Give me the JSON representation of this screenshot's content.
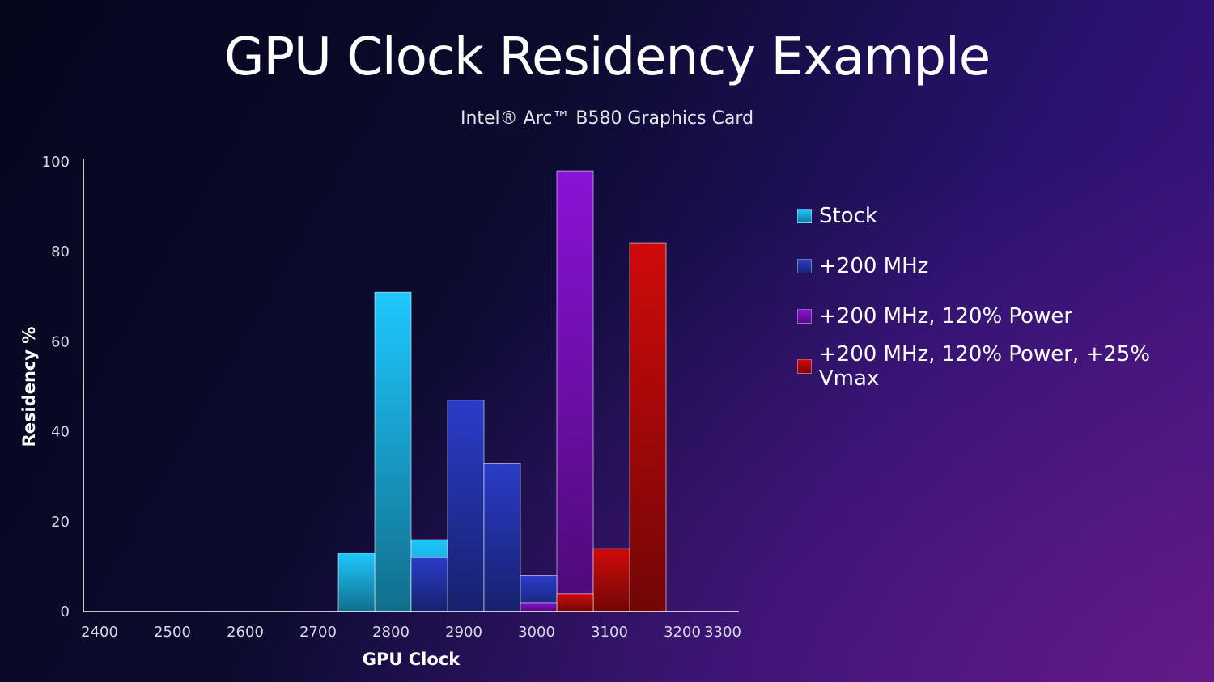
{
  "title": "GPU Clock Residency Example",
  "subtitle": "Intel® Arc™ B580 Graphics Card",
  "chart_data": {
    "type": "bar",
    "xlabel": "GPU Clock",
    "ylabel": "Residency %",
    "xlim": [
      2400,
      3300
    ],
    "ylim": [
      0,
      100
    ],
    "xticks": [
      2400,
      2500,
      2600,
      2700,
      2800,
      2900,
      3000,
      3100,
      3200,
      3300
    ],
    "yticks": [
      0,
      20,
      40,
      60,
      80,
      100
    ],
    "bin_width": 50,
    "legend_position": "right",
    "series": [
      {
        "name": "Stock",
        "color": "#1ec8ff",
        "bins": [
          {
            "start": 2750,
            "value": 13
          },
          {
            "start": 2800,
            "value": 71
          },
          {
            "start": 2850,
            "value": 16
          }
        ]
      },
      {
        "name": "+200 MHz",
        "color": "#2a3cc8",
        "bins": [
          {
            "start": 2850,
            "value": 12
          },
          {
            "start": 2900,
            "value": 47
          },
          {
            "start": 2950,
            "value": 33
          },
          {
            "start": 3000,
            "value": 8
          }
        ]
      },
      {
        "name": "+200 MHz, 120% Power",
        "color": "#8a12d6",
        "bins": [
          {
            "start": 3000,
            "value": 2
          },
          {
            "start": 3050,
            "value": 98
          }
        ]
      },
      {
        "name": "+200 MHz, 120% Power, +25% Vmax",
        "color": "#d00a0a",
        "bins": [
          {
            "start": 3050,
            "value": 4
          },
          {
            "start": 3100,
            "value": 14
          },
          {
            "start": 3150,
            "value": 82
          }
        ]
      }
    ]
  }
}
